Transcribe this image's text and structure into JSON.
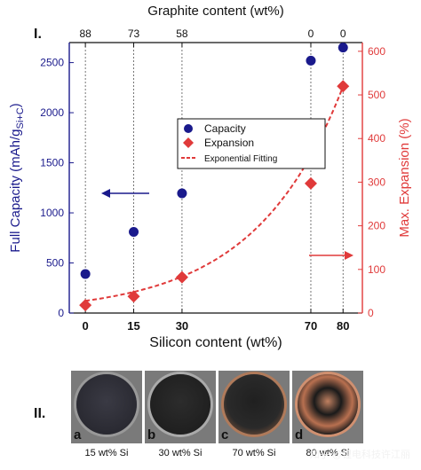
{
  "chart_data": {
    "type": "scatter",
    "xlabel": "Silicon content (wt%)",
    "top_xlabel": "Graphite content (wt%)",
    "ylabel_left": "Full Capacity (mAh/g",
    "ylabel_left_sub": "Si+C",
    "ylabel_left_close": ")",
    "ylabel_right": "Max. Expansion (%)",
    "x_ticks": [
      0,
      15,
      30,
      70,
      80
    ],
    "top_ticks": [
      "88",
      "73",
      "58",
      "0",
      "0"
    ],
    "y_left_ticks": [
      0,
      500,
      1000,
      1500,
      2000,
      2500
    ],
    "y_right_ticks": [
      0,
      100,
      200,
      300,
      400,
      500,
      600
    ],
    "ylim_left": [
      0,
      2700
    ],
    "ylim_right": [
      0,
      620
    ],
    "grid": "vertical dashed at each x tick",
    "legend_position": "center",
    "series": [
      {
        "name": "Capacity",
        "axis": "left",
        "marker": "circle",
        "color": "#1a1a8c",
        "x": [
          0,
          15,
          30,
          70,
          80
        ],
        "y": [
          390,
          810,
          1195,
          2520,
          2650
        ]
      },
      {
        "name": "Expansion",
        "axis": "right",
        "marker": "diamond",
        "color": "#e03a3a",
        "x": [
          0,
          15,
          30,
          70,
          80
        ],
        "y": [
          18,
          38,
          82,
          297,
          520
        ]
      },
      {
        "name": "Exponential Fitting",
        "axis": "right",
        "marker": "dashed-line",
        "color": "#e03a3a",
        "fit": {
          "a": 28.0,
          "b": 0.0365
        }
      }
    ]
  },
  "panel_labels": {
    "one": "I.",
    "two": "II."
  },
  "photos": [
    {
      "letter": "a",
      "caption": "15 wt% Si"
    },
    {
      "letter": "b",
      "caption": "30 wt% Si"
    },
    {
      "letter": "c",
      "caption": "70 wt% Si"
    },
    {
      "letter": "d",
      "caption": "80 wt% Si"
    }
  ],
  "watermark": "知乎 @锂电科技许江丽",
  "colors": {
    "capacity": "#1a1a8c",
    "expansion": "#e03a3a",
    "left_axis": "#1a1a8c",
    "right_axis": "#e03a3a"
  }
}
